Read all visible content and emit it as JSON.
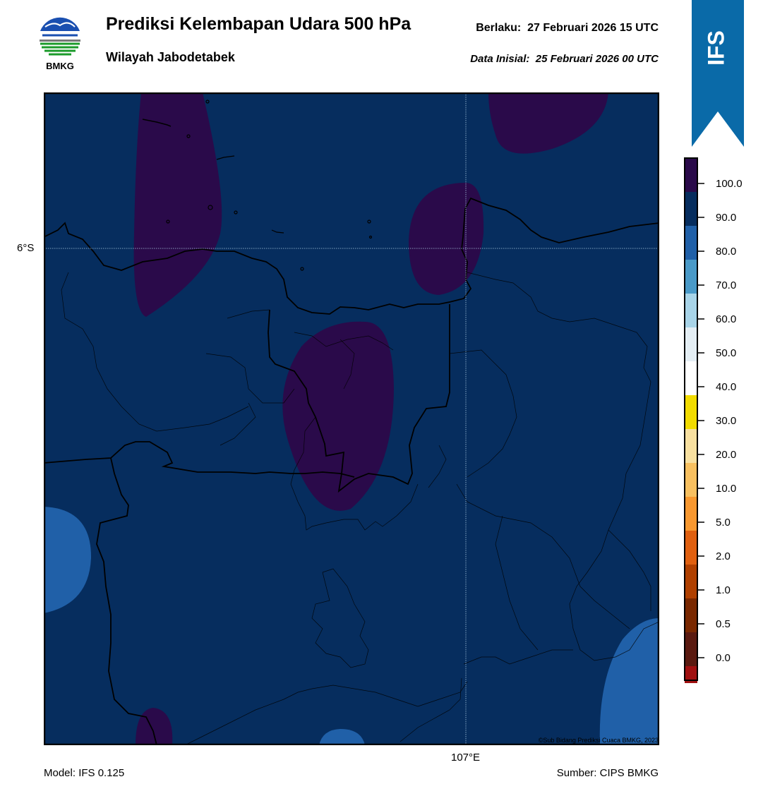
{
  "header": {
    "title": "Prediksi Kelembapan Udara 500 hPa",
    "subtitle": "Wilayah Jabodetabek",
    "valid_label": "Berlaku:",
    "valid_value": "27 Februari 2026 15 UTC",
    "init_label": "Data Inisial:",
    "init_value": "25 Februari 2026 00 UTC"
  },
  "logo": {
    "text": "BMKG",
    "icon": "bmkg-logo-icon"
  },
  "badge": {
    "text": "IFS",
    "color": "#0a6aa8"
  },
  "map": {
    "lat_label": "6°S",
    "lon_label": "107°E",
    "background_color": "#062d5e",
    "credit": "©Sub Bidang Prediksi Cuaca BMKG, 2023"
  },
  "footer": {
    "model": "Model: IFS 0.125",
    "source": "Sumber: CIPS BMKG"
  },
  "legend": {
    "items": [
      {
        "label": "100.0",
        "color": "#2a0a4a"
      },
      {
        "label": "90.0",
        "color": "#062d5e"
      },
      {
        "label": "80.0",
        "color": "#2060a8"
      },
      {
        "label": "70.0",
        "color": "#4a9ac8"
      },
      {
        "label": "60.0",
        "color": "#a8d4e8"
      },
      {
        "label": "50.0",
        "color": "#e4eef4"
      },
      {
        "label": "40.0",
        "color": "#ffffff"
      },
      {
        "label": "30.0",
        "color": "#f2dc00"
      },
      {
        "label": "20.0",
        "color": "#f8e0a0"
      },
      {
        "label": "10.0",
        "color": "#f8c060"
      },
      {
        "label": "5.0",
        "color": "#f89830"
      },
      {
        "label": "2.0",
        "color": "#e06010"
      },
      {
        "label": "1.0",
        "color": "#b04000"
      },
      {
        "label": "0.5",
        "color": "#7a2800"
      },
      {
        "label": "0.0",
        "color": "#5a1a10"
      },
      {
        "label": "",
        "color": "#a01010"
      },
      {
        "label": "",
        "color": "#e84030"
      }
    ]
  }
}
